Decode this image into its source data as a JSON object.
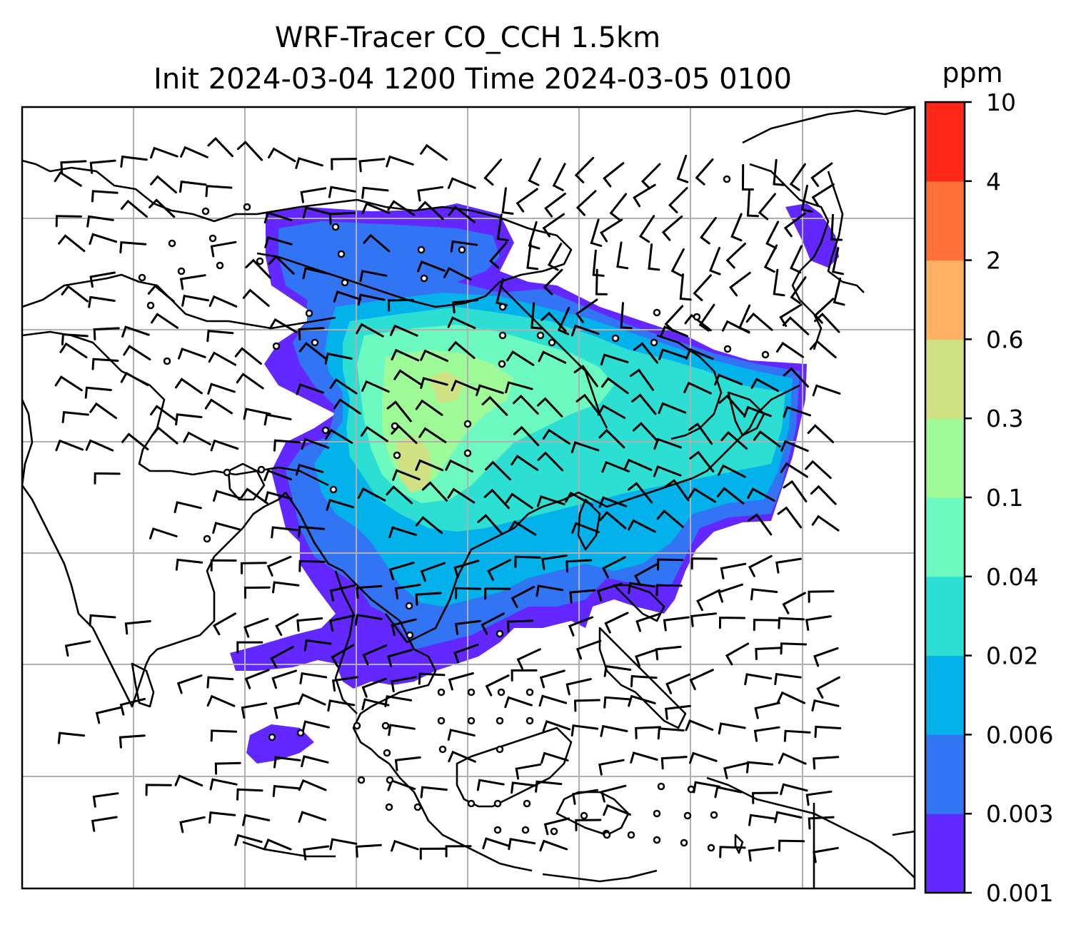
{
  "title_line1": "WRF-Tracer CO_CCH 1.5km",
  "title_line2": "Init 2024-03-04 1200 Time 2024-03-05 0100",
  "colorbar": {
    "unit": "ppm",
    "levels": [
      "0.001",
      "0.003",
      "0.006",
      "0.02",
      "0.04",
      "0.1",
      "0.3",
      "0.6",
      "2",
      "4",
      "10"
    ],
    "colors": [
      "#6228ff",
      "#3175f5",
      "#03b1eb",
      "#2cdfd2",
      "#6cfac0",
      "#9ffa98",
      "#d0e183",
      "#feb064",
      "#ff7138",
      "#ff2718"
    ]
  },
  "map": {
    "gridlines": true,
    "plume_colors": {
      "outer": "#6228ff",
      "blue": "#3175f5",
      "cyan": "#03b1eb",
      "teal": "#2cdfd2",
      "mint": "#6cfac0",
      "green": "#9ffa98",
      "olive": "#d0e183"
    }
  }
}
